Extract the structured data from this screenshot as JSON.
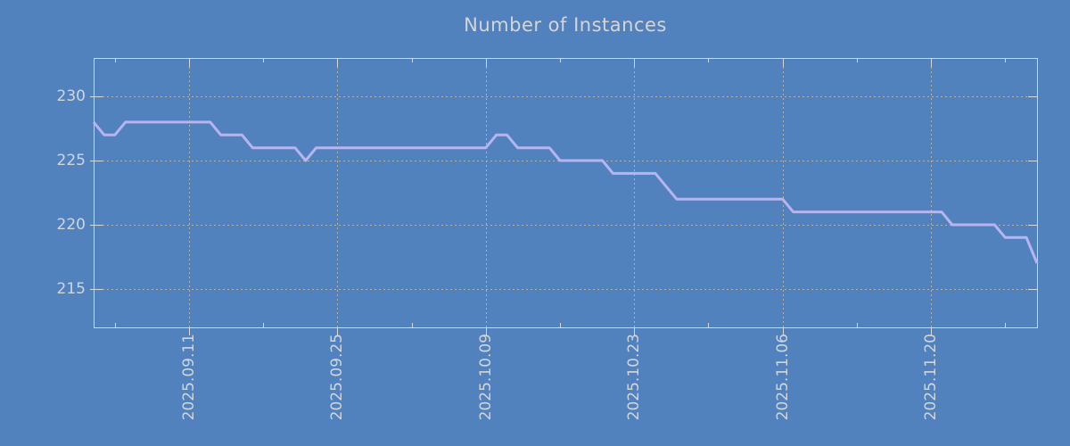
{
  "chart_data": {
    "type": "line",
    "title": "Number of Instances",
    "ylabel": "",
    "xlabel": "",
    "ylim": [
      212,
      233
    ],
    "y_ticks": [
      215,
      220,
      225,
      230
    ],
    "x_tick_labels": [
      "2025.09.11",
      "2025.09.25",
      "2025.10.09",
      "2025.10.23",
      "2025.11.06",
      "2025.11.20"
    ],
    "x_tick_day_index": [
      9,
      23,
      37,
      51,
      65,
      79
    ],
    "x_minor_tick_day_index": [
      2,
      16,
      30,
      44,
      58,
      72,
      86
    ],
    "days_span": 89,
    "grid": true,
    "legend_position": "none",
    "series": [
      {
        "name": "instances",
        "values": [
          228,
          227,
          227,
          228,
          228,
          228,
          228,
          228,
          228,
          228,
          228,
          228,
          227,
          227,
          227,
          226,
          226,
          226,
          226,
          226,
          225,
          226,
          226,
          226,
          226,
          226,
          226,
          226,
          226,
          226,
          226,
          226,
          226,
          226,
          226,
          226,
          226,
          226,
          227,
          227,
          226,
          226,
          226,
          226,
          225,
          225,
          225,
          225,
          225,
          224,
          224,
          224,
          224,
          224,
          223,
          222,
          222,
          222,
          222,
          222,
          222,
          222,
          222,
          222,
          222,
          222,
          221,
          221,
          221,
          221,
          221,
          221,
          221,
          221,
          221,
          221,
          221,
          221,
          221,
          221,
          221,
          220,
          220,
          220,
          220,
          220,
          219,
          219,
          219,
          217
        ]
      }
    ],
    "colors": {
      "background": "#5282be",
      "line": "#b7b4f0",
      "text": "#d2d5da",
      "grid": "#b2b2aa",
      "border": "#d5d7d7"
    }
  }
}
